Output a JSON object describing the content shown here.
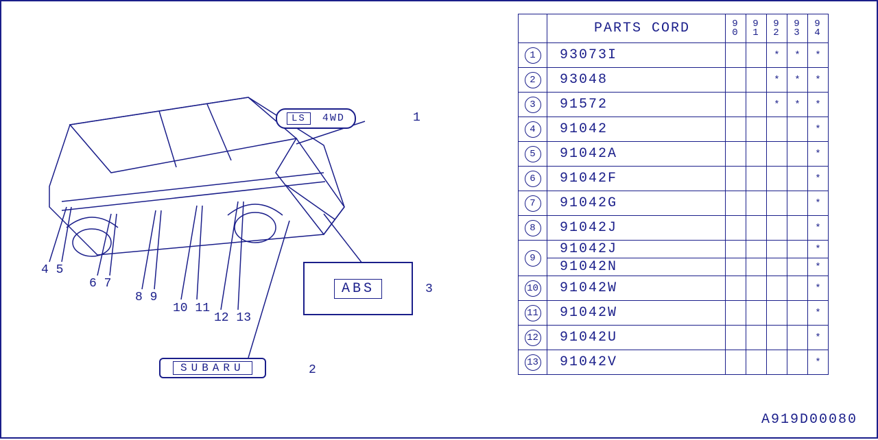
{
  "doc_code": "A919D00080",
  "table": {
    "header_label": "PARTS CORD",
    "years": [
      "90",
      "91",
      "92",
      "93",
      "94"
    ],
    "rows": [
      {
        "idx": "1",
        "code": "93073I",
        "marks": [
          "",
          "",
          "*",
          "*",
          "*"
        ]
      },
      {
        "idx": "2",
        "code": "93048",
        "marks": [
          "",
          "",
          "*",
          "*",
          "*"
        ]
      },
      {
        "idx": "3",
        "code": "91572",
        "marks": [
          "",
          "",
          "*",
          "*",
          "*"
        ]
      },
      {
        "idx": "4",
        "code": "91042",
        "marks": [
          "",
          "",
          "",
          "",
          "*"
        ]
      },
      {
        "idx": "5",
        "code": "91042A",
        "marks": [
          "",
          "",
          "",
          "",
          "*"
        ]
      },
      {
        "idx": "6",
        "code": "91042F",
        "marks": [
          "",
          "",
          "",
          "",
          "*"
        ]
      },
      {
        "idx": "7",
        "code": "91042G",
        "marks": [
          "",
          "",
          "",
          "",
          "*"
        ]
      },
      {
        "idx": "8",
        "code": "91042J",
        "marks": [
          "",
          "",
          "",
          "",
          "*"
        ]
      },
      {
        "idx": "9",
        "code": "91042J",
        "marks": [
          "",
          "",
          "",
          "",
          "*"
        ],
        "merge_down": true
      },
      {
        "idx": "",
        "code": "91042N",
        "marks": [
          "",
          "",
          "",
          "",
          "*"
        ],
        "merged": true
      },
      {
        "idx": "10",
        "code": "91042W",
        "marks": [
          "",
          "",
          "",
          "",
          "*"
        ]
      },
      {
        "idx": "11",
        "code": "91042W",
        "marks": [
          "",
          "",
          "",
          "",
          "*"
        ]
      },
      {
        "idx": "12",
        "code": "91042U",
        "marks": [
          "",
          "",
          "",
          "",
          "*"
        ]
      },
      {
        "idx": "13",
        "code": "91042V",
        "marks": [
          "",
          "",
          "",
          "",
          "*"
        ]
      }
    ]
  },
  "badges": {
    "badge1_a": "LS",
    "badge1_b": "4WD",
    "badge2": "SUBARU",
    "badge3": "ABS"
  },
  "callouts": {
    "n1": "1",
    "n2": "2",
    "n3": "3",
    "g45": "4 5",
    "g67": "6 7",
    "g89": "8 9",
    "g1011": "10 11",
    "g1213": "12 13"
  },
  "colors": {
    "ink": "#1a1e8a",
    "bg": "#ffffff"
  }
}
